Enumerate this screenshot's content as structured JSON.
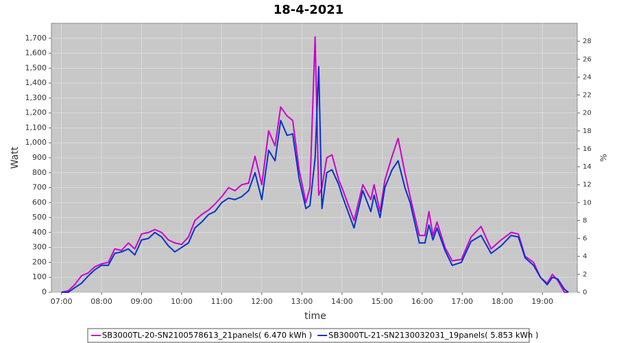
{
  "chart_data": {
    "type": "line",
    "title": "18-4-2021",
    "x_label": "time",
    "y_label": "Watt",
    "y2_label": "%",
    "x": [
      7.0,
      7.17,
      7.33,
      7.5,
      7.67,
      7.83,
      8.0,
      8.17,
      8.33,
      8.5,
      8.67,
      8.83,
      9.0,
      9.17,
      9.33,
      9.5,
      9.67,
      9.83,
      10.0,
      10.17,
      10.33,
      10.5,
      10.67,
      10.83,
      11.0,
      11.17,
      11.33,
      11.5,
      11.67,
      11.83,
      12.0,
      12.17,
      12.33,
      12.47,
      12.63,
      12.77,
      12.93,
      13.1,
      13.2,
      13.33,
      13.42,
      13.5,
      13.62,
      13.75,
      13.92,
      14.0,
      14.3,
      14.52,
      14.72,
      14.8,
      14.95,
      15.07,
      15.25,
      15.4,
      15.57,
      15.7,
      15.93,
      16.07,
      16.17,
      16.27,
      16.37,
      16.57,
      16.75,
      16.98,
      17.22,
      17.47,
      17.72,
      17.97,
      18.22,
      18.4,
      18.57,
      18.78,
      18.95,
      19.12,
      19.25,
      19.38,
      19.55,
      19.65
    ],
    "series": [
      {
        "name": "SB3000TL-20-SN2100578613_21panels( 6.470 kWh )",
        "color": "#cc00cc",
        "values": [
          0,
          10,
          50,
          110,
          130,
          170,
          190,
          200,
          290,
          280,
          330,
          290,
          390,
          400,
          420,
          400,
          350,
          330,
          320,
          370,
          480,
          520,
          550,
          590,
          640,
          700,
          680,
          720,
          730,
          910,
          720,
          1080,
          980,
          1240,
          1180,
          1150,
          820,
          600,
          700,
          1710,
          650,
          700,
          900,
          920,
          750,
          700,
          480,
          720,
          620,
          720,
          540,
          750,
          910,
          1030,
          800,
          640,
          380,
          380,
          540,
          380,
          470,
          300,
          210,
          220,
          370,
          440,
          290,
          350,
          400,
          390,
          240,
          200,
          100,
          60,
          120,
          80,
          0,
          0
        ]
      },
      {
        "name": "SB3000TL-21-SN2130032031_19panels( 5.853 kWh )",
        "color": "#0033cc",
        "values": [
          0,
          0,
          30,
          60,
          110,
          150,
          180,
          180,
          260,
          270,
          290,
          250,
          350,
          360,
          400,
          370,
          310,
          270,
          300,
          330,
          430,
          470,
          520,
          540,
          600,
          630,
          620,
          640,
          680,
          800,
          620,
          950,
          880,
          1150,
          1050,
          1060,
          760,
          560,
          580,
          900,
          1510,
          560,
          800,
          820,
          720,
          650,
          430,
          680,
          540,
          650,
          500,
          700,
          820,
          880,
          700,
          600,
          330,
          330,
          450,
          350,
          430,
          280,
          180,
          200,
          340,
          380,
          260,
          310,
          380,
          370,
          230,
          180,
          100,
          50,
          100,
          90,
          20,
          0
        ]
      }
    ],
    "xlim": [
      6.75,
      19.87
    ],
    "xticks": [
      {
        "value": 7,
        "label": "07:00"
      },
      {
        "value": 8,
        "label": "08:00"
      },
      {
        "value": 9,
        "label": "09:00"
      },
      {
        "value": 10,
        "label": "10:00"
      },
      {
        "value": 11,
        "label": "11:00"
      },
      {
        "value": 12,
        "label": "12:00"
      },
      {
        "value": 13,
        "label": "13:00"
      },
      {
        "value": 14,
        "label": "14:00"
      },
      {
        "value": 15,
        "label": "15:00"
      },
      {
        "value": 16,
        "label": "16:00"
      },
      {
        "value": 17,
        "label": "17:00"
      },
      {
        "value": 18,
        "label": "18:00"
      },
      {
        "value": 19,
        "label": "19:00"
      }
    ],
    "ylim": [
      0,
      1800
    ],
    "yticks": [
      0,
      100,
      200,
      300,
      400,
      500,
      600,
      700,
      800,
      900,
      {
        "value": 1000,
        "label": "1,000"
      },
      {
        "value": 1100,
        "label": "1,100"
      },
      {
        "value": 1200,
        "label": "1,200"
      },
      {
        "value": 1300,
        "label": "1,300"
      },
      {
        "value": 1400,
        "label": "1,400"
      },
      {
        "value": 1500,
        "label": "1,500"
      },
      {
        "value": 1600,
        "label": "1,600"
      },
      {
        "value": 1700,
        "label": "1,700"
      }
    ],
    "y2lim": [
      0,
      30
    ],
    "y2ticks": [
      0,
      2,
      4,
      6,
      8,
      10,
      12,
      14,
      16,
      18,
      20,
      22,
      24,
      26,
      28
    ],
    "grid": true
  }
}
